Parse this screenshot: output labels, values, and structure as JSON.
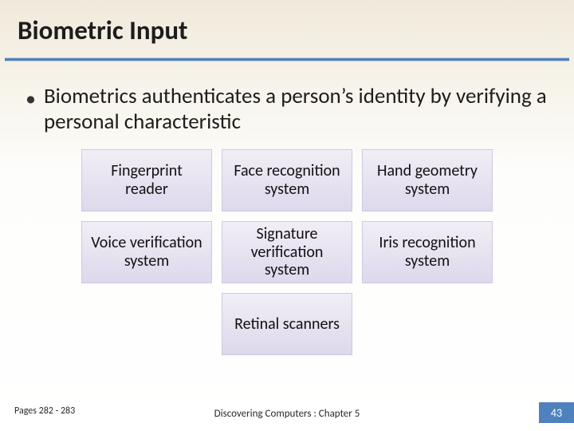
{
  "colors": {
    "accent": "#4f81bd",
    "text": "#1d1d1d",
    "card_bg_top": "#f1eef6",
    "card_bg_bottom": "#ded8ec",
    "card_border": "#cfc9e0",
    "page_bg_top": "#f0eadb",
    "page_bg_bottom": "#ffffff"
  },
  "title": "Biometric Input",
  "bullet": "Biometrics authenticates a person’s identity by verifying a personal characteristic",
  "grid": {
    "rows": [
      [
        "Fingerprint reader",
        "Face recognition system",
        "Hand geometry system"
      ],
      [
        "Voice verification system",
        "Signature verification system",
        "Iris recognition system"
      ],
      [
        "Retinal scanners"
      ]
    ],
    "card_fontsize": 20
  },
  "footer": {
    "pages_ref": "Pages 282 - 283",
    "center": "Discovering Computers : Chapter 5",
    "page_number": "43"
  }
}
